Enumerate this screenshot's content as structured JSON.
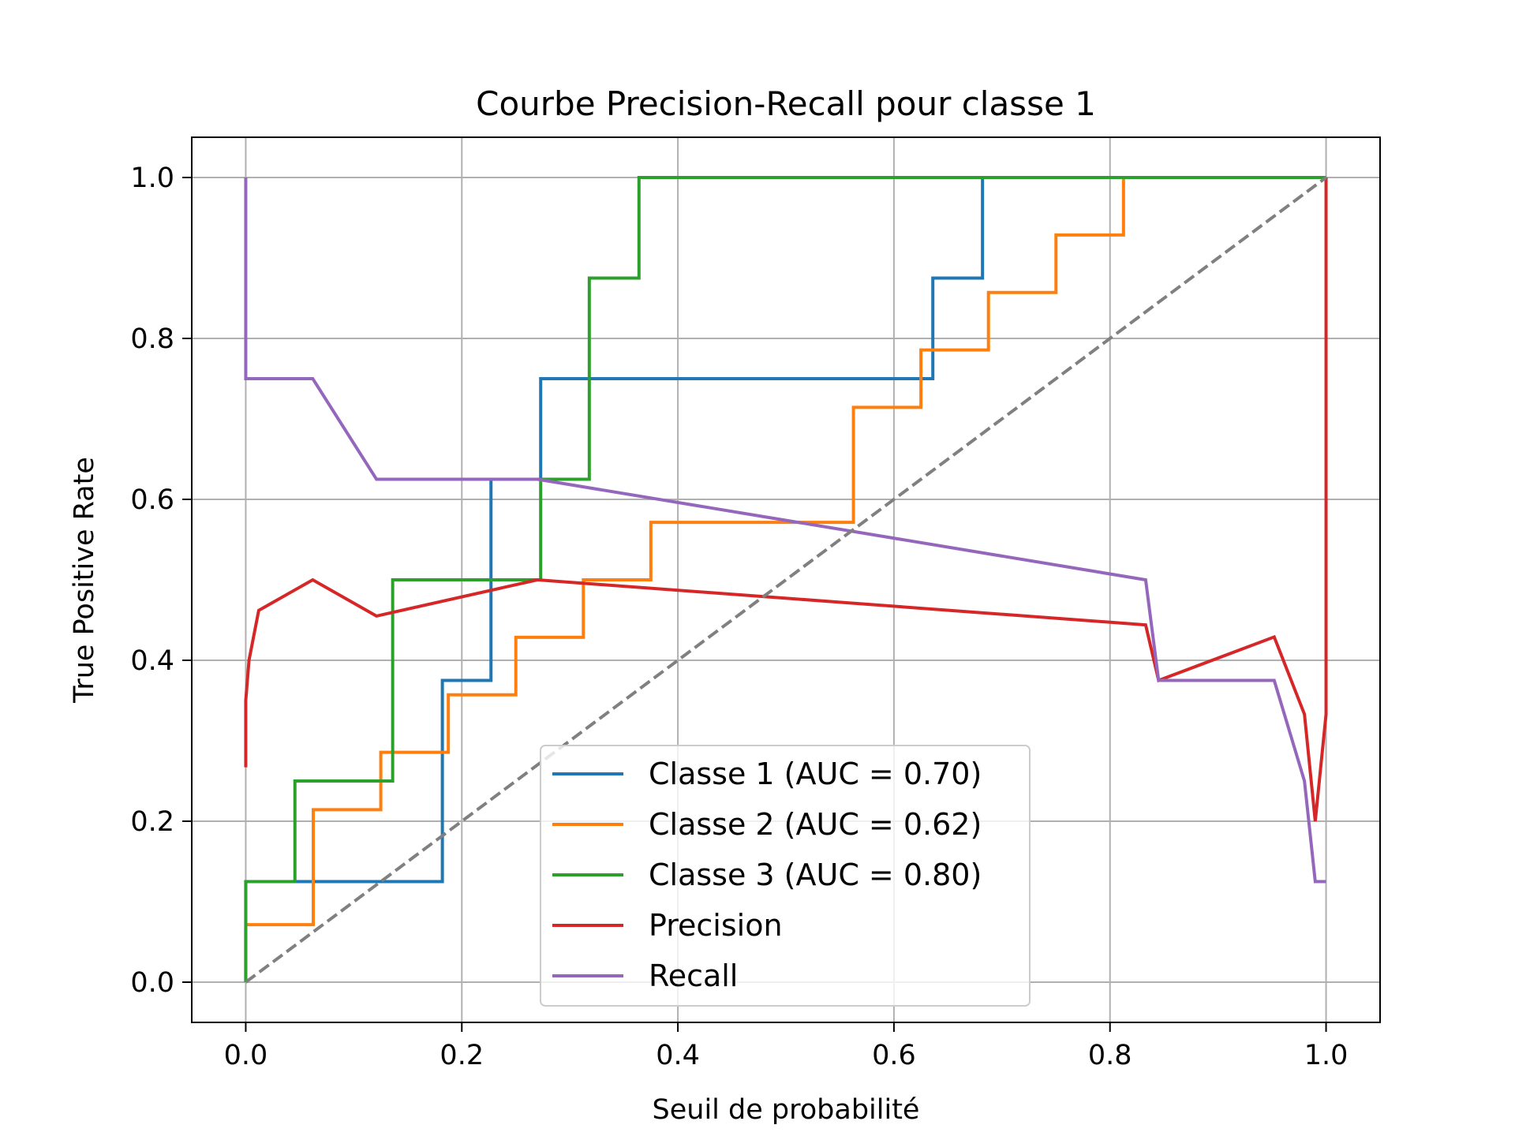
{
  "chart_data": {
    "type": "line",
    "title": "Courbe Precision-Recall pour classe 1",
    "xlabel": "Seuil de probabilité",
    "ylabel": "True Positive Rate",
    "xlim": [
      -0.05,
      1.05
    ],
    "ylim": [
      -0.05,
      1.05
    ],
    "xticks": [
      "0.0",
      "0.2",
      "0.4",
      "0.6",
      "0.8",
      "1.0"
    ],
    "yticks": [
      "0.0",
      "0.2",
      "0.4",
      "0.6",
      "0.8",
      "1.0"
    ],
    "grid": true,
    "legend_position": "lower-center",
    "diagonal": {
      "x": [
        0,
        1
      ],
      "y": [
        0,
        1
      ],
      "color": "#808080",
      "style": "dashed"
    },
    "series": [
      {
        "name": "Classe 1 (AUC = 0.70)",
        "color": "#1f77b4",
        "x": [
          0,
          0,
          0.182,
          0.182,
          0.227,
          0.227,
          0.273,
          0.273,
          0.636,
          0.636,
          0.682,
          0.682,
          1.0
        ],
        "y": [
          0,
          0.125,
          0.125,
          0.375,
          0.375,
          0.625,
          0.625,
          0.75,
          0.75,
          0.875,
          0.875,
          1.0,
          1.0
        ]
      },
      {
        "name": "Classe 2 (AUC = 0.62)",
        "color": "#ff7f0e",
        "x": [
          0,
          0,
          0.0625,
          0.0625,
          0.125,
          0.125,
          0.1875,
          0.1875,
          0.25,
          0.25,
          0.3125,
          0.3125,
          0.375,
          0.375,
          0.5625,
          0.5625,
          0.625,
          0.625,
          0.6875,
          0.6875,
          0.75,
          0.75,
          0.8125,
          0.8125,
          1.0
        ],
        "y": [
          0,
          0.0714,
          0.0714,
          0.2143,
          0.2143,
          0.2857,
          0.2857,
          0.3571,
          0.3571,
          0.4286,
          0.4286,
          0.5,
          0.5,
          0.5714,
          0.5714,
          0.7143,
          0.7143,
          0.7857,
          0.7857,
          0.8571,
          0.8571,
          0.9286,
          0.9286,
          1.0,
          1.0
        ]
      },
      {
        "name": "Classe 3 (AUC = 0.80)",
        "color": "#2ca02c",
        "x": [
          0,
          0,
          0.0455,
          0.0455,
          0.136,
          0.136,
          0.273,
          0.273,
          0.318,
          0.318,
          0.364,
          0.364,
          1.0
        ],
        "y": [
          0,
          0.125,
          0.125,
          0.25,
          0.25,
          0.5,
          0.5,
          0.625,
          0.625,
          0.875,
          0.875,
          1.0,
          1.0
        ]
      },
      {
        "name": "Precision",
        "color": "#d62728",
        "x": [
          0,
          0,
          0,
          0.003,
          0.012,
          0.062,
          0.121,
          0.27,
          0.833,
          0.845,
          0.952,
          0.98,
          0.99,
          1.0,
          1.0
        ],
        "y": [
          0.267,
          0.3,
          0.35,
          0.4,
          0.462,
          0.5,
          0.455,
          0.5,
          0.444,
          0.375,
          0.429,
          0.333,
          0.2,
          0.333,
          1.0
        ]
      },
      {
        "name": "Recall",
        "color": "#9467bd",
        "x": [
          0,
          0,
          0.062,
          0.121,
          0.27,
          0.833,
          0.845,
          0.952,
          0.98,
          0.99,
          1.0
        ],
        "y": [
          1.0,
          0.75,
          0.75,
          0.625,
          0.625,
          0.5,
          0.375,
          0.375,
          0.25,
          0.125,
          0.125
        ]
      }
    ]
  }
}
